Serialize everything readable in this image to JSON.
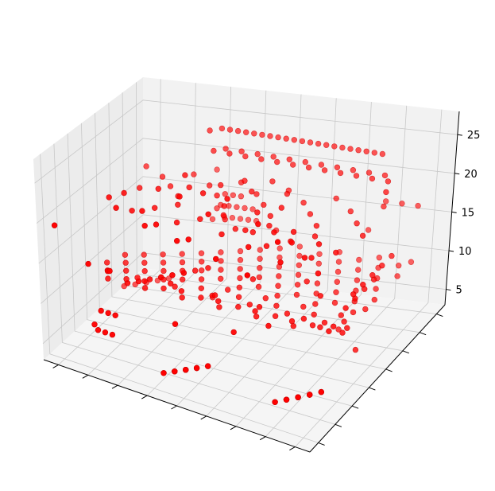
{
  "chart_data": {
    "type": "scatter",
    "projection": "3d",
    "title": "",
    "xlabel": "",
    "ylabel": "",
    "zlabel": "",
    "x_tick_labels": [
      "",
      "",
      "",
      "",
      "",
      "",
      "",
      "",
      ""
    ],
    "y_tick_labels": [
      "",
      "",
      "",
      "",
      "",
      "",
      "",
      ""
    ],
    "z_ticks": [
      5,
      10,
      15,
      20,
      25
    ],
    "z_tick_labels": [
      "5",
      "10",
      "15",
      "20",
      "25"
    ],
    "zlim": [
      3,
      28
    ],
    "grid": true,
    "pane_color": "#f2f2f2",
    "grid_color": "#c8c8c8",
    "marker_color": "#ff0000",
    "marker_edge_color": "#cc0000",
    "x": [
      4,
      18,
      36,
      50,
      56,
      64,
      70,
      62,
      52,
      40,
      30,
      38,
      46,
      54,
      60,
      66,
      44,
      56,
      64,
      30,
      40,
      26,
      34,
      14,
      20,
      26,
      32,
      36,
      42,
      48,
      28,
      38,
      48,
      58,
      16,
      26,
      36,
      52,
      62,
      12,
      22,
      46,
      58,
      66,
      50,
      40,
      10,
      20,
      30,
      40,
      50,
      60,
      70,
      58,
      34,
      46,
      64,
      26,
      38,
      50,
      62,
      70,
      8,
      18,
      28,
      38,
      48,
      58,
      12,
      22,
      32,
      42,
      52,
      62,
      70,
      6,
      14,
      24,
      34,
      44,
      54,
      64,
      70,
      10,
      20,
      30,
      40,
      50,
      60,
      68,
      4,
      14,
      24,
      36,
      46,
      56,
      66,
      8,
      18,
      28,
      38,
      48,
      58,
      68,
      12,
      22,
      32,
      42,
      52,
      62,
      70,
      6,
      16,
      26,
      36,
      46,
      56,
      66,
      10,
      20,
      30,
      40,
      50,
      60,
      70,
      14,
      24,
      34,
      44,
      54,
      64,
      18,
      28,
      38,
      48,
      58,
      68,
      22,
      32,
      42,
      52,
      62,
      26,
      36,
      46,
      56,
      66,
      30,
      40,
      50,
      60,
      70,
      34,
      44,
      54,
      64,
      38,
      48,
      58,
      68,
      42,
      52,
      62,
      70,
      16,
      28,
      40,
      52,
      64,
      20,
      32,
      44,
      56,
      68,
      24,
      36,
      48,
      60,
      12,
      22,
      34,
      46,
      58,
      70,
      18,
      30,
      42,
      54,
      66,
      14,
      26,
      38,
      50,
      62,
      8,
      20,
      32,
      44,
      56,
      68,
      2,
      4,
      6,
      8,
      10,
      2,
      4,
      6,
      8,
      2,
      4,
      6,
      30,
      32,
      34,
      36,
      38,
      30,
      32,
      34,
      36,
      38,
      32,
      34,
      36,
      32,
      34,
      8,
      10,
      12,
      14,
      8,
      10,
      12,
      14,
      10,
      12,
      60,
      62,
      64,
      66,
      68,
      60,
      62,
      64,
      66,
      68,
      62,
      64,
      66,
      62,
      64,
      66,
      68,
      24,
      26,
      28,
      30,
      32,
      34,
      36,
      38,
      40,
      42,
      44,
      46,
      48,
      50,
      52,
      54,
      56,
      58,
      60,
      62,
      64,
      66,
      24,
      28,
      32,
      36,
      40,
      44,
      48,
      52,
      56,
      60,
      64,
      68,
      26,
      30,
      34,
      38,
      42,
      46,
      50,
      54,
      58,
      62,
      66,
      70,
      72,
      74,
      72,
      74,
      72,
      74,
      72,
      74,
      72,
      74,
      60,
      64,
      68,
      72,
      20,
      22,
      24,
      26,
      28,
      30,
      20,
      22,
      24,
      26,
      28,
      30,
      22,
      24,
      26,
      28,
      12,
      14,
      16,
      18,
      12,
      14,
      16,
      18
    ],
    "y": [
      2,
      4,
      4,
      8,
      14,
      24,
      30,
      36,
      44,
      46,
      40,
      30,
      24,
      20,
      18,
      14,
      16,
      10,
      6,
      18,
      14,
      28,
      22,
      20,
      26,
      30,
      34,
      38,
      40,
      36,
      10,
      8,
      4,
      2,
      12,
      8,
      6,
      12,
      10,
      16,
      14,
      26,
      22,
      20,
      30,
      34,
      18,
      18,
      18,
      18,
      18,
      18,
      18,
      28,
      24,
      24,
      24,
      20,
      20,
      20,
      20,
      20,
      22,
      22,
      22,
      22,
      22,
      22,
      24,
      24,
      24,
      24,
      24,
      24,
      24,
      26,
      26,
      26,
      26,
      26,
      26,
      26,
      26,
      28,
      28,
      28,
      28,
      28,
      28,
      28,
      30,
      30,
      30,
      30,
      30,
      30,
      30,
      32,
      32,
      32,
      32,
      32,
      32,
      32,
      34,
      34,
      34,
      34,
      34,
      34,
      34,
      36,
      36,
      36,
      36,
      36,
      36,
      36,
      38,
      38,
      38,
      38,
      38,
      38,
      38,
      40,
      40,
      40,
      40,
      40,
      40,
      42,
      42,
      42,
      42,
      42,
      42,
      44,
      44,
      44,
      44,
      44,
      46,
      46,
      46,
      46,
      46,
      48,
      48,
      48,
      48,
      48,
      50,
      50,
      50,
      50,
      52,
      52,
      52,
      52,
      54,
      54,
      54,
      54,
      20,
      20,
      20,
      20,
      20,
      24,
      24,
      24,
      24,
      24,
      28,
      28,
      28,
      28,
      32,
      32,
      32,
      32,
      32,
      32,
      36,
      36,
      36,
      36,
      36,
      40,
      40,
      40,
      40,
      40,
      44,
      44,
      44,
      44,
      44,
      44,
      44,
      46,
      48,
      50,
      52,
      46,
      48,
      50,
      52,
      46,
      48,
      50,
      8,
      10,
      12,
      14,
      16,
      8,
      10,
      12,
      14,
      16,
      10,
      12,
      14,
      10,
      12,
      52,
      54,
      56,
      58,
      52,
      54,
      56,
      58,
      54,
      56,
      10,
      12,
      14,
      16,
      18,
      10,
      12,
      14,
      16,
      18,
      12,
      14,
      16,
      12,
      14,
      16,
      18,
      46,
      46,
      46,
      46,
      46,
      46,
      46,
      46,
      46,
      46,
      46,
      46,
      46,
      46,
      46,
      46,
      46,
      46,
      46,
      46,
      46,
      46,
      44,
      44,
      44,
      44,
      44,
      44,
      44,
      44,
      44,
      44,
      44,
      44,
      42,
      42,
      42,
      42,
      42,
      42,
      42,
      42,
      42,
      42,
      42,
      42,
      38,
      38,
      34,
      34,
      30,
      30,
      26,
      26,
      22,
      22,
      52,
      52,
      52,
      52,
      56,
      56,
      56,
      56,
      56,
      56,
      54,
      54,
      54,
      54,
      54,
      54,
      52,
      52,
      52,
      52,
      4,
      4,
      4,
      4,
      6,
      6,
      6,
      6
    ],
    "z": [
      20,
      16,
      12,
      12,
      12,
      10,
      6,
      6,
      10,
      14,
      16,
      18,
      20,
      22,
      22,
      22,
      26,
      26,
      26,
      24,
      24,
      24,
      24,
      22,
      22,
      22,
      22,
      22,
      22,
      22,
      22,
      22,
      22,
      22,
      22,
      22,
      22,
      22,
      22,
      22,
      22,
      22,
      22,
      22,
      22,
      22,
      12,
      12,
      12,
      12,
      12,
      12,
      12,
      14,
      14,
      14,
      14,
      12,
      12,
      12,
      12,
      12,
      10,
      10,
      10,
      10,
      10,
      10,
      10,
      10,
      10,
      10,
      10,
      10,
      10,
      10,
      10,
      10,
      10,
      10,
      10,
      10,
      10,
      10,
      10,
      10,
      10,
      10,
      10,
      10,
      10,
      10,
      10,
      10,
      10,
      10,
      10,
      10,
      10,
      10,
      10,
      10,
      10,
      10,
      10,
      10,
      10,
      10,
      10,
      10,
      10,
      10,
      10,
      10,
      10,
      10,
      10,
      10,
      10,
      10,
      10,
      10,
      10,
      10,
      10,
      10,
      10,
      10,
      10,
      10,
      10,
      10,
      10,
      10,
      10,
      10,
      10,
      10,
      10,
      10,
      10,
      10,
      10,
      10,
      10,
      10,
      10,
      10,
      10,
      10,
      10,
      10,
      10,
      10,
      10,
      10,
      10,
      10,
      10,
      10,
      10,
      10,
      10,
      10,
      20,
      20,
      20,
      20,
      20,
      20,
      20,
      20,
      20,
      20,
      20,
      20,
      20,
      20,
      20,
      20,
      20,
      20,
      20,
      20,
      20,
      20,
      20,
      20,
      20,
      20,
      20,
      20,
      20,
      20,
      20,
      20,
      20,
      20,
      20,
      20,
      4,
      4,
      4,
      4,
      4,
      4,
      4,
      4,
      4,
      4,
      4,
      4,
      4,
      4,
      4,
      4,
      4,
      4,
      4,
      4,
      4,
      4,
      4,
      4,
      4,
      4,
      4,
      4,
      4,
      4,
      4,
      4,
      4,
      4,
      4,
      4,
      4,
      4,
      4,
      4,
      4,
      4,
      4,
      4,
      4,
      4,
      4,
      4,
      4,
      4,
      4,
      4,
      4,
      4,
      4,
      26,
      26,
      26,
      26,
      26,
      26,
      26,
      26,
      26,
      26,
      26,
      26,
      26,
      26,
      26,
      26,
      26,
      26,
      26,
      26,
      26,
      26,
      24,
      24,
      24,
      24,
      24,
      24,
      24,
      24,
      24,
      24,
      24,
      24,
      24,
      24,
      24,
      24,
      24,
      24,
      24,
      24,
      24,
      24,
      24,
      24,
      16,
      14,
      16,
      14,
      16,
      14,
      16,
      14,
      16,
      14,
      18,
      18,
      18,
      18,
      12,
      12,
      12,
      12,
      12,
      12,
      14,
      14,
      14,
      14,
      14,
      14,
      16,
      16,
      16,
      16,
      8,
      8,
      8,
      8,
      10,
      10,
      10,
      10
    ]
  }
}
